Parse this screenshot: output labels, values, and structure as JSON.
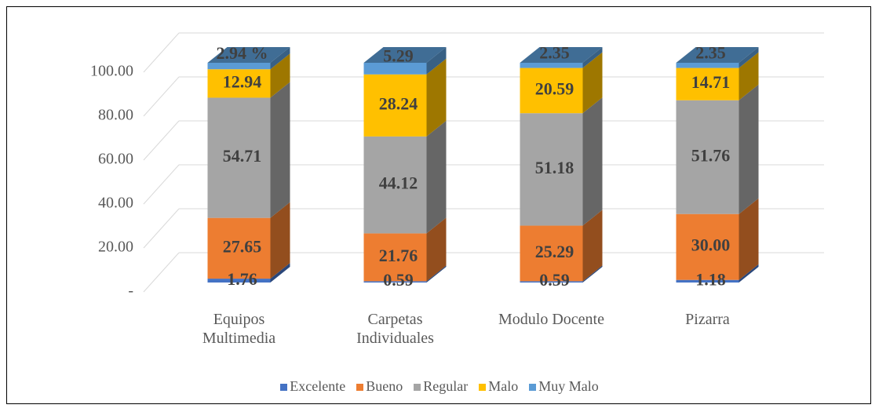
{
  "chart_data": {
    "type": "bar3d_stacked",
    "categories": [
      "Equipos Multimedia",
      "Carpetas Individuales",
      "Modulo Docente",
      "Pizarra"
    ],
    "series": [
      {
        "name": "Excelente",
        "color": "#4472c4",
        "values": [
          1.76,
          0.59,
          0.59,
          1.18
        ],
        "value_labels": [
          "1.76",
          "0.59",
          "0.59",
          "1.18"
        ]
      },
      {
        "name": "Bueno",
        "color": "#ed7d31",
        "values": [
          27.65,
          21.76,
          25.29,
          30.0
        ],
        "value_labels": [
          "27.65",
          "21.76",
          "25.29",
          "30.00"
        ]
      },
      {
        "name": "Regular",
        "color": "#a5a5a5",
        "values": [
          54.71,
          44.12,
          51.18,
          51.76
        ],
        "value_labels": [
          "54.71",
          "44.12",
          "51.18",
          "51.76"
        ]
      },
      {
        "name": "Malo",
        "color": "#ffc000",
        "values": [
          12.94,
          28.24,
          20.59,
          14.71
        ],
        "value_labels": [
          "12.94",
          "28.24",
          "20.59",
          "14.71"
        ]
      },
      {
        "name": "Muy Malo",
        "color": "#5b9bd5",
        "values": [
          2.94,
          5.29,
          2.35,
          2.35
        ],
        "value_labels": [
          "2.94 %",
          "5.29",
          "2.35",
          "2.35"
        ]
      }
    ],
    "ylim": [
      0,
      100
    ],
    "yticks": [
      {
        "value": 0,
        "label": "-"
      },
      {
        "value": 20,
        "label": "20.00"
      },
      {
        "value": 40,
        "label": "40.00"
      },
      {
        "value": 60,
        "label": "60.00"
      },
      {
        "value": 80,
        "label": "80.00"
      },
      {
        "value": 100,
        "label": "100.00"
      }
    ],
    "grid": true,
    "legend": "bottom"
  }
}
